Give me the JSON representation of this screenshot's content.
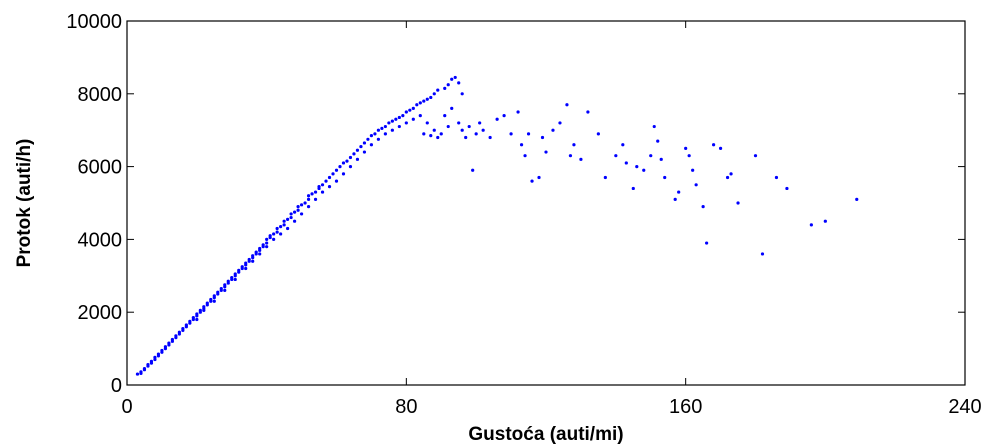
{
  "chart_data": {
    "type": "scatter",
    "xlabel": "Gustoća (auti/mi)",
    "ylabel": "Protok (auti/h)",
    "xlim": [
      0,
      240
    ],
    "ylim": [
      0,
      10000
    ],
    "xticks": [
      0,
      80,
      160,
      240
    ],
    "yticks": [
      0,
      2000,
      4000,
      6000,
      8000,
      10000
    ],
    "grid": false,
    "marker_color": "#0000ff",
    "series": [
      {
        "points": [
          [
            3,
            300
          ],
          [
            4,
            320
          ],
          [
            4,
            360
          ],
          [
            5,
            420
          ],
          [
            5,
            450
          ],
          [
            6,
            520
          ],
          [
            6,
            560
          ],
          [
            7,
            600
          ],
          [
            7,
            650
          ],
          [
            8,
            700
          ],
          [
            8,
            760
          ],
          [
            9,
            800
          ],
          [
            9,
            850
          ],
          [
            10,
            900
          ],
          [
            10,
            950
          ],
          [
            11,
            1000
          ],
          [
            11,
            1050
          ],
          [
            12,
            1100
          ],
          [
            12,
            1150
          ],
          [
            13,
            1200
          ],
          [
            13,
            1250
          ],
          [
            14,
            1300
          ],
          [
            14,
            1350
          ],
          [
            15,
            1400
          ],
          [
            15,
            1450
          ],
          [
            16,
            1500
          ],
          [
            16,
            1550
          ],
          [
            17,
            1600
          ],
          [
            17,
            1650
          ],
          [
            18,
            1700
          ],
          [
            18,
            1750
          ],
          [
            19,
            1800
          ],
          [
            19,
            1850
          ],
          [
            20,
            1900
          ],
          [
            20,
            1950
          ],
          [
            21,
            2000
          ],
          [
            21,
            2050
          ],
          [
            22,
            2100
          ],
          [
            22,
            2150
          ],
          [
            23,
            2200
          ],
          [
            23,
            2250
          ],
          [
            24,
            2300
          ],
          [
            24,
            2350
          ],
          [
            25,
            2400
          ],
          [
            25,
            2450
          ],
          [
            26,
            2500
          ],
          [
            26,
            2550
          ],
          [
            27,
            2600
          ],
          [
            27,
            2650
          ],
          [
            28,
            2700
          ],
          [
            28,
            2750
          ],
          [
            29,
            2800
          ],
          [
            29,
            2850
          ],
          [
            30,
            2900
          ],
          [
            30,
            2950
          ],
          [
            31,
            3000
          ],
          [
            31,
            3050
          ],
          [
            32,
            3100
          ],
          [
            32,
            3150
          ],
          [
            33,
            3200
          ],
          [
            33,
            3250
          ],
          [
            34,
            3300
          ],
          [
            34,
            3350
          ],
          [
            35,
            3400
          ],
          [
            35,
            3450
          ],
          [
            36,
            3500
          ],
          [
            36,
            3550
          ],
          [
            37,
            3600
          ],
          [
            37,
            3650
          ],
          [
            38,
            3700
          ],
          [
            38,
            3750
          ],
          [
            39,
            3800
          ],
          [
            39,
            3850
          ],
          [
            40,
            3900
          ],
          [
            40,
            4000
          ],
          [
            41,
            4050
          ],
          [
            41,
            4100
          ],
          [
            42,
            4150
          ],
          [
            43,
            4200
          ],
          [
            43,
            4300
          ],
          [
            44,
            4350
          ],
          [
            45,
            4400
          ],
          [
            45,
            4500
          ],
          [
            46,
            4550
          ],
          [
            47,
            4600
          ],
          [
            47,
            4700
          ],
          [
            48,
            4750
          ],
          [
            49,
            4800
          ],
          [
            49,
            4900
          ],
          [
            50,
            4950
          ],
          [
            51,
            5000
          ],
          [
            52,
            5100
          ],
          [
            52,
            5200
          ],
          [
            53,
            5250
          ],
          [
            54,
            5300
          ],
          [
            55,
            5400
          ],
          [
            55,
            5450
          ],
          [
            56,
            5500
          ],
          [
            57,
            5600
          ],
          [
            58,
            5700
          ],
          [
            59,
            5800
          ],
          [
            60,
            5900
          ],
          [
            61,
            6000
          ],
          [
            62,
            6100
          ],
          [
            63,
            6150
          ],
          [
            64,
            6250
          ],
          [
            65,
            6350
          ],
          [
            66,
            6450
          ],
          [
            67,
            6550
          ],
          [
            68,
            6650
          ],
          [
            69,
            6750
          ],
          [
            70,
            6850
          ],
          [
            71,
            6900
          ],
          [
            72,
            7000
          ],
          [
            73,
            7050
          ],
          [
            74,
            7100
          ],
          [
            75,
            7200
          ],
          [
            76,
            7250
          ],
          [
            77,
            7300
          ],
          [
            78,
            7350
          ],
          [
            79,
            7400
          ],
          [
            80,
            7500
          ],
          [
            81,
            7550
          ],
          [
            82,
            7600
          ],
          [
            83,
            7700
          ],
          [
            84,
            7750
          ],
          [
            85,
            7800
          ],
          [
            86,
            7850
          ],
          [
            87,
            7900
          ],
          [
            88,
            8000
          ],
          [
            89,
            8100
          ],
          [
            91,
            8150
          ],
          [
            92,
            8250
          ],
          [
            93,
            8400
          ],
          [
            94,
            8450
          ],
          [
            95,
            8300
          ],
          [
            96,
            8000
          ],
          [
            20,
            1800
          ],
          [
            22,
            2050
          ],
          [
            25,
            2300
          ],
          [
            28,
            2600
          ],
          [
            31,
            2900
          ],
          [
            34,
            3200
          ],
          [
            36,
            3400
          ],
          [
            38,
            3600
          ],
          [
            40,
            3800
          ],
          [
            42,
            4000
          ],
          [
            44,
            4150
          ],
          [
            46,
            4300
          ],
          [
            48,
            4500
          ],
          [
            50,
            4700
          ],
          [
            52,
            4900
          ],
          [
            54,
            5100
          ],
          [
            56,
            5300
          ],
          [
            58,
            5450
          ],
          [
            60,
            5600
          ],
          [
            62,
            5800
          ],
          [
            64,
            6000
          ],
          [
            66,
            6200
          ],
          [
            68,
            6400
          ],
          [
            70,
            6600
          ],
          [
            72,
            6750
          ],
          [
            74,
            6900
          ],
          [
            76,
            7000
          ],
          [
            78,
            7100
          ],
          [
            80,
            7200
          ],
          [
            82,
            7300
          ],
          [
            84,
            7400
          ],
          [
            86,
            7200
          ],
          [
            88,
            7000
          ],
          [
            90,
            6900
          ],
          [
            92,
            7100
          ],
          [
            85,
            6900
          ],
          [
            87,
            6850
          ],
          [
            89,
            6800
          ],
          [
            91,
            7400
          ],
          [
            93,
            7600
          ],
          [
            95,
            7200
          ],
          [
            96,
            7000
          ],
          [
            97,
            6800
          ],
          [
            98,
            7100
          ],
          [
            99,
            5900
          ],
          [
            100,
            6900
          ],
          [
            101,
            7200
          ],
          [
            102,
            7000
          ],
          [
            104,
            6800
          ],
          [
            106,
            7300
          ],
          [
            108,
            7400
          ],
          [
            110,
            6900
          ],
          [
            112,
            7500
          ],
          [
            113,
            6600
          ],
          [
            114,
            6300
          ],
          [
            115,
            6900
          ],
          [
            116,
            5600
          ],
          [
            118,
            5700
          ],
          [
            119,
            6800
          ],
          [
            120,
            6400
          ],
          [
            122,
            7000
          ],
          [
            124,
            7200
          ],
          [
            126,
            7700
          ],
          [
            127,
            6300
          ],
          [
            128,
            6600
          ],
          [
            130,
            6200
          ],
          [
            132,
            7500
          ],
          [
            135,
            6900
          ],
          [
            137,
            5700
          ],
          [
            140,
            6300
          ],
          [
            142,
            6600
          ],
          [
            143,
            6100
          ],
          [
            145,
            5400
          ],
          [
            146,
            6000
          ],
          [
            148,
            5900
          ],
          [
            150,
            6300
          ],
          [
            151,
            7100
          ],
          [
            152,
            6700
          ],
          [
            153,
            6200
          ],
          [
            154,
            5700
          ],
          [
            157,
            5100
          ],
          [
            158,
            5300
          ],
          [
            160,
            6500
          ],
          [
            161,
            6300
          ],
          [
            162,
            5900
          ],
          [
            163,
            5500
          ],
          [
            165,
            4900
          ],
          [
            166,
            3900
          ],
          [
            168,
            6600
          ],
          [
            170,
            6500
          ],
          [
            172,
            5700
          ],
          [
            173,
            5800
          ],
          [
            175,
            5000
          ],
          [
            180,
            6300
          ],
          [
            182,
            3600
          ],
          [
            186,
            5700
          ],
          [
            189,
            5400
          ],
          [
            196,
            4400
          ],
          [
            200,
            4500
          ],
          [
            209,
            5100
          ]
        ]
      }
    ]
  }
}
